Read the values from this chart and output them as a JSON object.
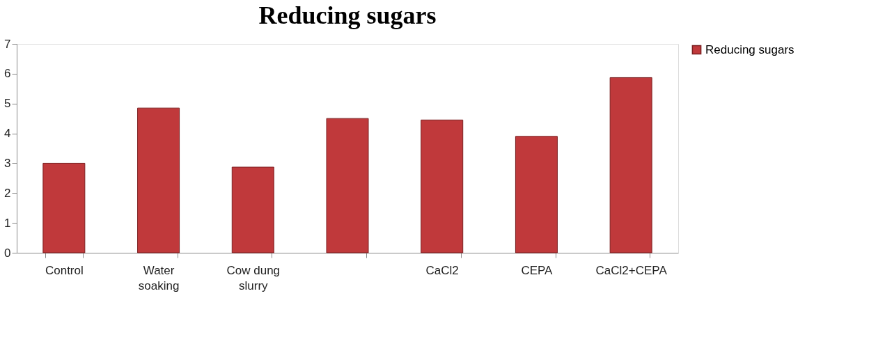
{
  "chart_data": {
    "type": "bar",
    "title": "Reducing sugars",
    "categories": [
      "Control",
      "Water soaking",
      "Cow dung slurry",
      null,
      "CaCl2",
      "CEPA",
      "CaCl2+CEPA"
    ],
    "series": [
      {
        "name": "Reducing sugars",
        "color": "#c0393b",
        "values": [
          3.0,
          4.85,
          2.87,
          4.5,
          4.45,
          3.9,
          5.87
        ]
      }
    ],
    "ylim": [
      0,
      7
    ],
    "yticks": [
      0,
      1,
      2,
      3,
      4,
      5,
      6,
      7
    ],
    "grid": false,
    "legend": "right"
  }
}
